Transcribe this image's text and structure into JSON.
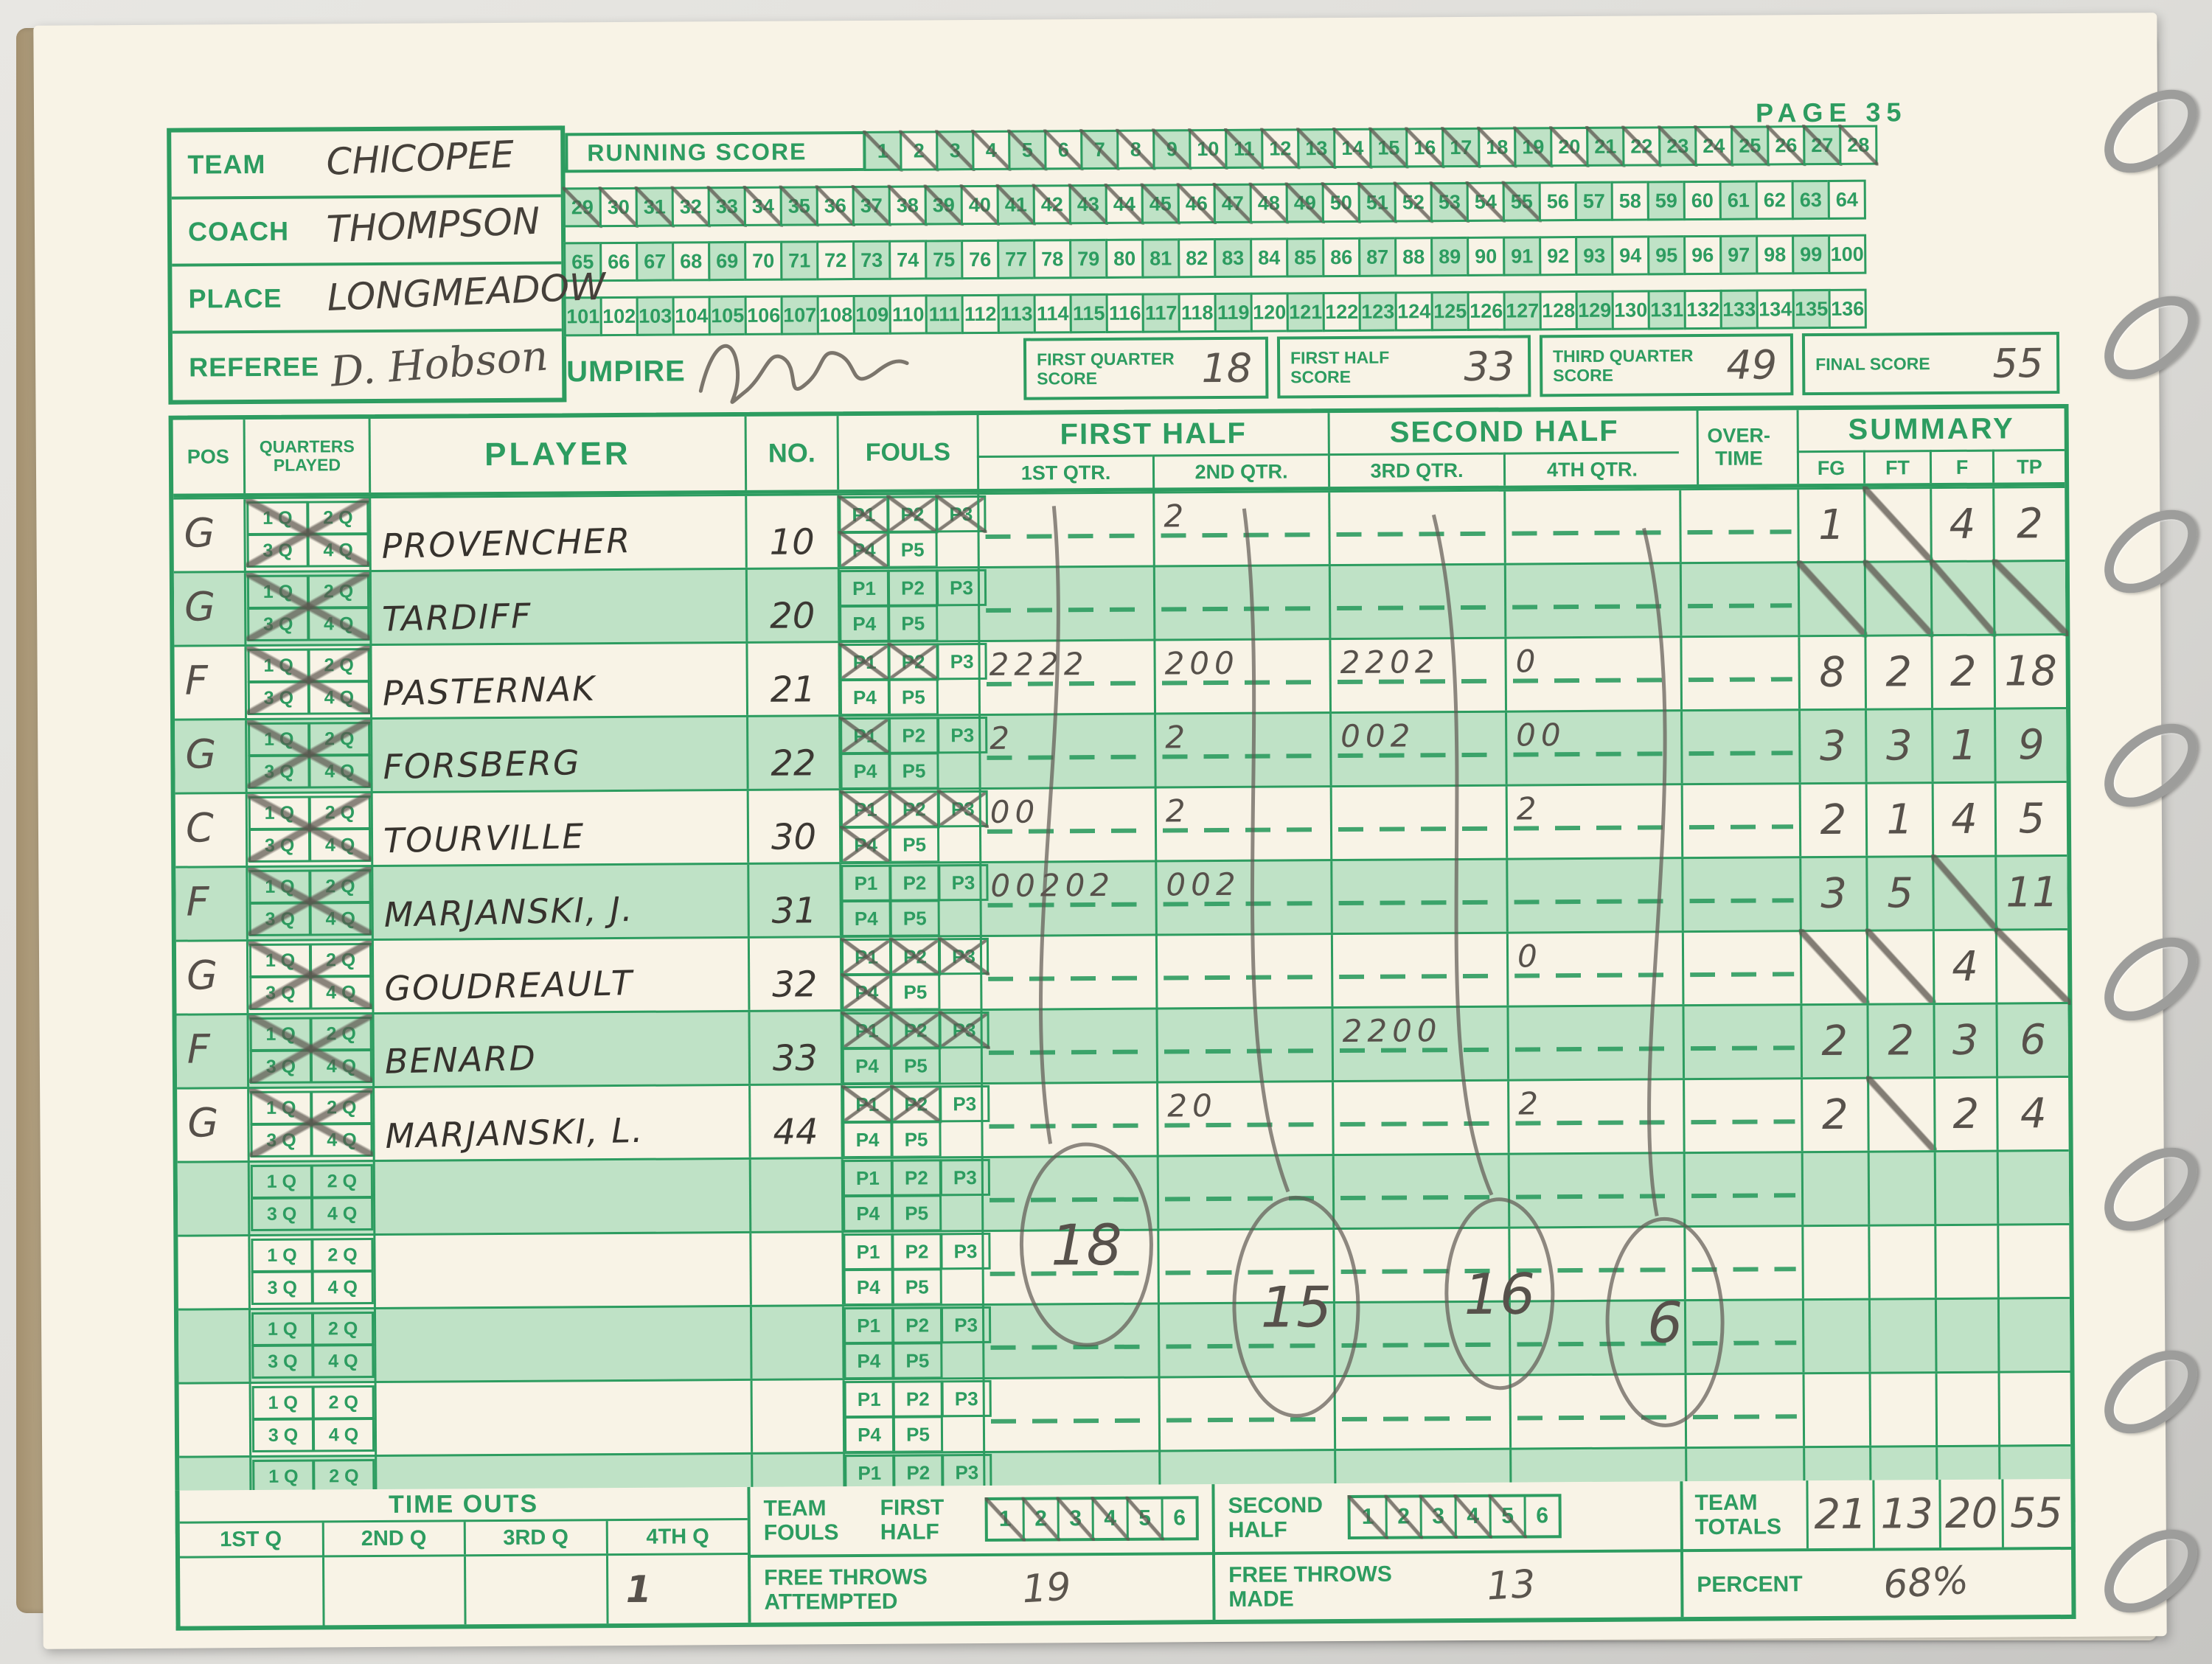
{
  "page": {
    "label": "PAGE 35"
  },
  "info": {
    "team_label": "TEAM",
    "team_value": "CHICOPEE",
    "coach_label": "COACH",
    "coach_value": "THOMPSON",
    "place_label": "PLACE",
    "place_value": "LONGMEADOW",
    "referee_label": "REFEREE",
    "referee_value": "D. Hobson",
    "umpire_label": "UMPIRE",
    "umpire_value": "(illegible signature)"
  },
  "running_score": {
    "label": "RUNNING SCORE",
    "rows": [
      [
        1,
        28
      ],
      [
        29,
        64
      ],
      [
        65,
        100
      ],
      [
        101,
        136
      ]
    ],
    "crossed_through": 55
  },
  "quarter_scores": {
    "first_quarter_label": "FIRST QUARTER SCORE",
    "first_quarter": "18",
    "first_half_label": "FIRST HALF SCORE",
    "first_half": "33",
    "third_quarter_label": "THIRD QUARTER SCORE",
    "third_quarter": "49",
    "final_label": "FINAL SCORE",
    "final": "55"
  },
  "table_header": {
    "pos": "POS",
    "quarters_played": "QUARTERS PLAYED",
    "player": "PLAYER",
    "no": "NO.",
    "fouls": "FOULS",
    "first_half": "FIRST HALF",
    "second_half": "SECOND HALF",
    "qtrs": [
      "1ST QTR.",
      "2ND QTR.",
      "3RD QTR.",
      "4TH QTR."
    ],
    "overtime": "OVER-TIME",
    "summary": "SUMMARY",
    "summary_cols": [
      "FG",
      "FT",
      "F",
      "TP"
    ],
    "foul_boxes": [
      "P1",
      "P2",
      "P3",
      "P4",
      "P5"
    ],
    "qp_boxes": [
      "1 Q",
      "2 Q",
      "3 Q",
      "4 Q"
    ]
  },
  "players": [
    {
      "pos": "G",
      "name": "PROVENCHER",
      "no": "10",
      "played": true,
      "fouls": 4,
      "q1": "",
      "q2": "2",
      "q3": "",
      "q4": "",
      "fg": "1",
      "ft": "/",
      "f": "4",
      "tp": "2"
    },
    {
      "pos": "G",
      "name": "TARDIFF",
      "no": "20",
      "played": true,
      "fouls": 0,
      "q1": "",
      "q2": "",
      "q3": "",
      "q4": "",
      "fg": "/",
      "ft": "/",
      "f": "/",
      "tp": "/"
    },
    {
      "pos": "F",
      "name": "PASTERNAK",
      "no": "21",
      "played": true,
      "fouls": 2,
      "q1": "2222",
      "q2": "200",
      "q3": "2202",
      "q4": "0",
      "fg": "8",
      "ft": "2",
      "f": "2",
      "tp": "18"
    },
    {
      "pos": "G",
      "name": "FORSBERG",
      "no": "22",
      "played": true,
      "fouls": 1,
      "q1": "2",
      "q2": "2",
      "q3": "002",
      "q4": "00",
      "fg": "3",
      "ft": "3",
      "f": "1",
      "tp": "9"
    },
    {
      "pos": "C",
      "name": "TOURVILLE",
      "no": "30",
      "played": true,
      "fouls": 4,
      "q1": "00",
      "q2": "2",
      "q3": "",
      "q4": "2",
      "fg": "2",
      "ft": "1",
      "f": "4",
      "tp": "5"
    },
    {
      "pos": "F",
      "name": "MARJANSKI, J.",
      "no": "31",
      "played": true,
      "fouls": 0,
      "q1": "00202",
      "q2": "002",
      "q3": "",
      "q4": "",
      "fg": "3",
      "ft": "5",
      "f": "/",
      "tp": "11"
    },
    {
      "pos": "G",
      "name": "GOUDREAULT",
      "no": "32",
      "played": true,
      "fouls": 4,
      "q1": "",
      "q2": "",
      "q3": "",
      "q4": "0",
      "fg": "/",
      "ft": "/",
      "f": "4",
      "tp": "/"
    },
    {
      "pos": "F",
      "name": "BENARD",
      "no": "33",
      "played": true,
      "fouls": 3,
      "q1": "",
      "q2": "",
      "q3": "2200",
      "q4": "",
      "fg": "2",
      "ft": "2",
      "f": "3",
      "tp": "6"
    },
    {
      "pos": "G",
      "name": "MARJANSKI, L.",
      "no": "44",
      "played": true,
      "fouls": 2,
      "q1": "",
      "q2": "20",
      "q3": "",
      "q4": "2",
      "fg": "2",
      "ft": "/",
      "f": "2",
      "tp": "4"
    },
    {
      "pos": "",
      "name": "",
      "no": "",
      "played": false,
      "fouls": 0,
      "q1": "",
      "q2": "",
      "q3": "",
      "q4": "",
      "fg": "",
      "ft": "",
      "f": "",
      "tp": ""
    },
    {
      "pos": "",
      "name": "",
      "no": "",
      "played": false,
      "fouls": 0,
      "q1": "",
      "q2": "",
      "q3": "",
      "q4": "",
      "fg": "",
      "ft": "",
      "f": "",
      "tp": ""
    },
    {
      "pos": "",
      "name": "",
      "no": "",
      "played": false,
      "fouls": 0,
      "q1": "",
      "q2": "",
      "q3": "",
      "q4": "",
      "fg": "",
      "ft": "",
      "f": "",
      "tp": ""
    },
    {
      "pos": "",
      "name": "",
      "no": "",
      "played": false,
      "fouls": 0,
      "q1": "",
      "q2": "",
      "q3": "",
      "q4": "",
      "fg": "",
      "ft": "",
      "f": "",
      "tp": ""
    },
    {
      "pos": "",
      "name": "",
      "no": "",
      "played": false,
      "fouls": 0,
      "q1": "",
      "q2": "",
      "q3": "",
      "q4": "",
      "fg": "",
      "ft": "",
      "f": "",
      "tp": ""
    }
  ],
  "quarter_totals": {
    "q1": "18",
    "q2": "15",
    "q3": "16",
    "q4": "6"
  },
  "timeouts": {
    "title": "TIME OUTS",
    "labels": [
      "1ST Q",
      "2ND Q",
      "3RD Q",
      "4TH Q"
    ],
    "values": [
      "",
      "",
      "",
      "1"
    ]
  },
  "team_fouls": {
    "label": "TEAM FOULS",
    "first_half_label": "FIRST HALF",
    "second_half_label": "SECOND HALF",
    "boxes": [
      "1",
      "2",
      "3",
      "4",
      "5",
      "6"
    ],
    "first_half_crossed": 5,
    "second_half_crossed": 5
  },
  "free_throws": {
    "attempted_label": "FREE THROWS ATTEMPTED",
    "attempted_value": "19",
    "made_label": "FREE THROWS MADE",
    "made_value": "13"
  },
  "team_totals": {
    "label": "TEAM TOTALS",
    "fg": "21",
    "ft": "13",
    "f": "20",
    "tp": "55"
  },
  "percent": {
    "label": "PERCENT",
    "value": "68%"
  }
}
